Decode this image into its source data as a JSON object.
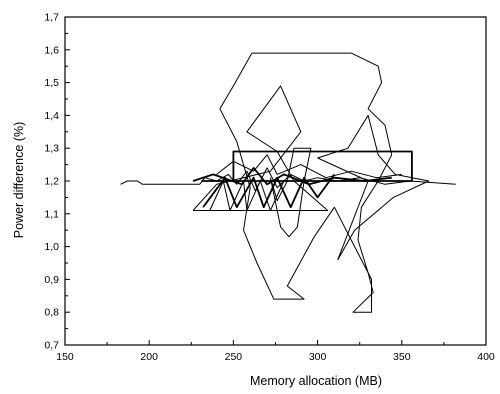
{
  "chart_data": {
    "type": "line",
    "title": "",
    "xlabel": "Memory allocation (MB)",
    "ylabel": "Power difference (%)",
    "xlim": [
      150,
      400
    ],
    "ylim": [
      0.7,
      1.7
    ],
    "xticks": [
      150,
      200,
      250,
      300,
      350,
      400
    ],
    "yticks": [
      0.7,
      0.8,
      0.9,
      1.0,
      1.1,
      1.2,
      1.3,
      1.4,
      1.5,
      1.6,
      1.7
    ],
    "xtick_labels": [
      "150",
      "200",
      "250",
      "300",
      "350",
      "400"
    ],
    "ytick_labels": [
      "0,7",
      "0,8",
      "0,9",
      "1,0",
      "1,1",
      "1,2",
      "1,3",
      "1,4",
      "1,5",
      "1,6",
      "1,7"
    ],
    "grid": false,
    "legend": "none",
    "series": [
      {
        "values": [
          [
            183,
            1.19
          ],
          [
            187,
            1.2
          ],
          [
            193,
            1.2
          ],
          [
            196,
            1.19
          ],
          [
            230,
            1.19
          ],
          [
            233,
            1.21
          ],
          [
            240,
            1.2
          ],
          [
            247,
            1.22
          ],
          [
            252,
            1.19
          ],
          [
            258,
            1.23
          ],
          [
            263,
            1.17
          ],
          [
            270,
            1.24
          ],
          [
            276,
            1.18
          ],
          [
            284,
            1.22
          ],
          [
            292,
            1.2
          ],
          [
            300,
            1.21
          ],
          [
            312,
            1.2
          ],
          [
            325,
            1.21
          ],
          [
            340,
            1.19
          ],
          [
            355,
            1.2
          ],
          [
            382,
            1.19
          ]
        ]
      },
      {
        "values": [
          [
            261,
            1.59
          ],
          [
            320,
            1.59
          ],
          [
            336,
            1.55
          ],
          [
            338,
            1.5
          ],
          [
            330,
            1.42
          ],
          [
            340,
            1.37
          ],
          [
            344,
            1.28
          ],
          [
            336,
            1.2
          ],
          [
            326,
            1.12
          ],
          [
            324,
            1.02
          ],
          [
            330,
            0.92
          ],
          [
            333,
            0.86
          ],
          [
            321,
            0.8
          ],
          [
            332,
            0.8
          ],
          [
            332,
            0.9
          ],
          [
            322,
            1.0
          ],
          [
            310,
            1.12
          ],
          [
            298,
            1.03
          ],
          [
            282,
            0.88
          ],
          [
            292,
            0.84
          ],
          [
            274,
            0.84
          ],
          [
            264,
            0.95
          ],
          [
            256,
            1.05
          ],
          [
            260,
            1.18
          ],
          [
            252,
            1.32
          ],
          [
            242,
            1.42
          ],
          [
            250,
            1.49
          ],
          [
            261,
            1.59
          ]
        ]
      },
      {
        "values": [
          [
            231,
            1.2
          ],
          [
            356,
            1.2
          ],
          [
            356,
            1.29
          ],
          [
            250,
            1.29
          ],
          [
            250,
            1.2
          ]
        ]
      },
      {
        "values": [
          [
            226,
            1.11
          ],
          [
            306,
            1.11
          ],
          [
            286,
            1.2
          ],
          [
            276,
            1.29
          ],
          [
            258,
            1.35
          ],
          [
            278,
            1.49
          ],
          [
            290,
            1.35
          ],
          [
            272,
            1.23
          ],
          [
            240,
            1.19
          ],
          [
            226,
            1.11
          ]
        ]
      },
      {
        "values": [
          [
            300,
            1.27
          ],
          [
            318,
            1.3
          ],
          [
            330,
            1.4
          ],
          [
            336,
            1.28
          ],
          [
            346,
            1.22
          ],
          [
            366,
            1.2
          ],
          [
            345,
            1.15
          ],
          [
            322,
            1.05
          ],
          [
            312,
            0.96
          ],
          [
            330,
            1.2
          ],
          [
            300,
            1.27
          ]
        ]
      },
      {
        "values": [
          [
            232,
            1.12
          ],
          [
            245,
            1.21
          ],
          [
            252,
            1.12
          ],
          [
            262,
            1.21
          ],
          [
            268,
            1.12
          ],
          [
            276,
            1.21
          ],
          [
            284,
            1.12
          ],
          [
            292,
            1.21
          ],
          [
            300,
            1.15
          ],
          [
            310,
            1.22
          ]
        ]
      },
      {
        "values": [
          [
            272,
            1.21
          ],
          [
            278,
            1.06
          ],
          [
            283,
            1.03
          ],
          [
            288,
            1.06
          ],
          [
            292,
            1.2
          ],
          [
            296,
            1.3
          ],
          [
            286,
            1.3
          ],
          [
            282,
            1.2
          ],
          [
            276,
            1.14
          ],
          [
            272,
            1.21
          ]
        ]
      },
      {
        "values": [
          [
            240,
            1.22
          ],
          [
            250,
            1.26
          ],
          [
            262,
            1.23
          ],
          [
            270,
            1.28
          ],
          [
            276,
            1.22
          ],
          [
            290,
            1.25
          ],
          [
            305,
            1.21
          ],
          [
            320,
            1.23
          ],
          [
            335,
            1.21
          ],
          [
            350,
            1.22
          ]
        ]
      },
      {
        "values": [
          [
            226,
            1.2
          ],
          [
            238,
            1.22
          ],
          [
            255,
            1.19
          ],
          [
            262,
            1.24
          ],
          [
            270,
            1.19
          ],
          [
            280,
            1.22
          ],
          [
            295,
            1.19
          ],
          [
            310,
            1.21
          ],
          [
            328,
            1.2
          ],
          [
            344,
            1.21
          ]
        ]
      },
      {
        "values": [
          [
            236,
            1.11
          ],
          [
            244,
            1.2
          ],
          [
            248,
            1.11
          ],
          [
            256,
            1.2
          ],
          [
            258,
            1.11
          ],
          [
            266,
            1.2
          ],
          [
            272,
            1.11
          ],
          [
            280,
            1.2
          ]
        ]
      }
    ]
  }
}
